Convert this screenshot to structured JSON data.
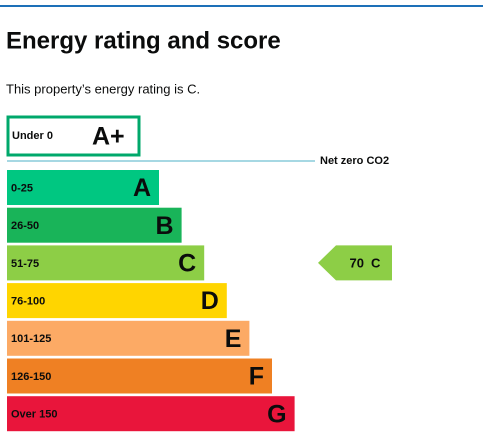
{
  "header": {
    "title": "Energy rating and score",
    "subtitle": "This property’s energy rating is C."
  },
  "rating_chart": {
    "top_band": {
      "range": "Under 0",
      "letter": "A+",
      "color": "#00a86b"
    },
    "net_zero_label": "Net zero CO2",
    "bands": [
      {
        "range": "0-25",
        "letter": "A",
        "color": "#00c781"
      },
      {
        "range": "26-50",
        "letter": "B",
        "color": "#19b459"
      },
      {
        "range": "51-75",
        "letter": "C",
        "color": "#8dce46"
      },
      {
        "range": "76-100",
        "letter": "D",
        "color": "#ffd500"
      },
      {
        "range": "101-125",
        "letter": "E",
        "color": "#fcaa65"
      },
      {
        "range": "126-150",
        "letter": "F",
        "color": "#ef8023"
      },
      {
        "range": "Over 150",
        "letter": "G",
        "color": "#e9153b"
      }
    ],
    "current": {
      "score": 70,
      "letter": "C",
      "band_index": 2
    }
  }
}
